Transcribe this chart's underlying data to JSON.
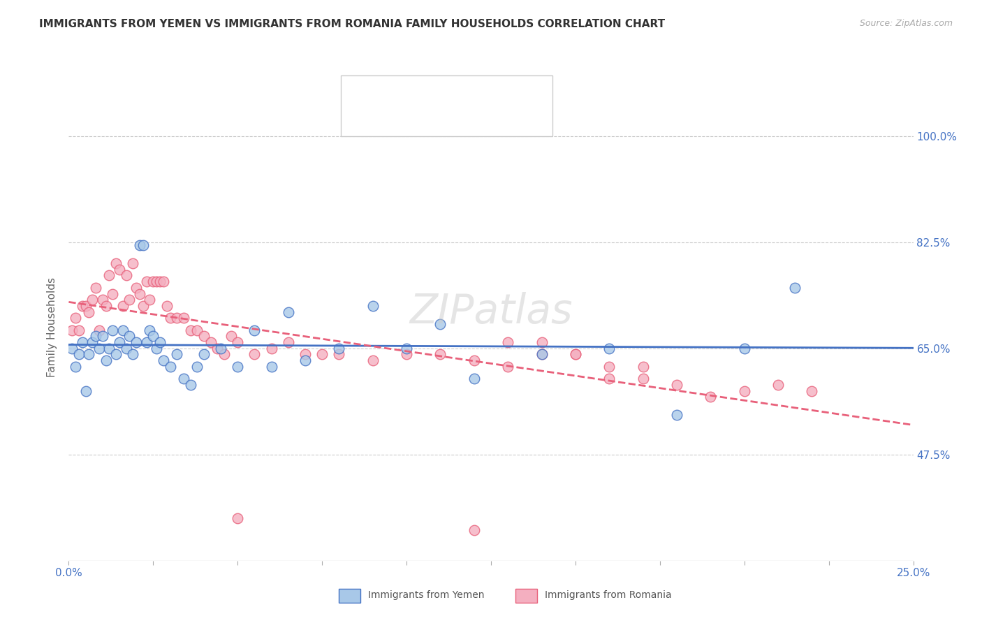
{
  "title": "IMMIGRANTS FROM YEMEN VS IMMIGRANTS FROM ROMANIA FAMILY HOUSEHOLDS CORRELATION CHART",
  "source": "Source: ZipAtlas.com",
  "ylabel": "Family Households",
  "yticks": [
    0.475,
    0.65,
    0.825,
    1.0
  ],
  "ytick_labels": [
    "47.5%",
    "65.0%",
    "82.5%",
    "100.0%"
  ],
  "xmin": 0.0,
  "xmax": 0.25,
  "ymin": 0.3,
  "ymax": 1.07,
  "label1": "Immigrants from Yemen",
  "label2": "Immigrants from Romania",
  "color1": "#a8c8e8",
  "color2": "#f4afc0",
  "line_color1": "#4472c4",
  "line_color2": "#e8607a",
  "title_color": "#333333",
  "source_color": "#aaaaaa",
  "axis_label_color": "#4472c4",
  "yemen_x": [
    0.001,
    0.002,
    0.003,
    0.004,
    0.005,
    0.006,
    0.007,
    0.008,
    0.009,
    0.01,
    0.011,
    0.012,
    0.013,
    0.014,
    0.015,
    0.016,
    0.017,
    0.018,
    0.019,
    0.02,
    0.021,
    0.022,
    0.023,
    0.024,
    0.025,
    0.026,
    0.027,
    0.028,
    0.03,
    0.032,
    0.034,
    0.036,
    0.038,
    0.04,
    0.045,
    0.05,
    0.055,
    0.06,
    0.065,
    0.07,
    0.08,
    0.09,
    0.1,
    0.11,
    0.12,
    0.14,
    0.16,
    0.18,
    0.2,
    0.215
  ],
  "yemen_y": [
    0.65,
    0.62,
    0.64,
    0.66,
    0.58,
    0.64,
    0.66,
    0.67,
    0.65,
    0.67,
    0.63,
    0.65,
    0.68,
    0.64,
    0.66,
    0.68,
    0.65,
    0.67,
    0.64,
    0.66,
    0.82,
    0.82,
    0.66,
    0.68,
    0.67,
    0.65,
    0.66,
    0.63,
    0.62,
    0.64,
    0.6,
    0.59,
    0.62,
    0.64,
    0.65,
    0.62,
    0.68,
    0.62,
    0.71,
    0.63,
    0.65,
    0.72,
    0.65,
    0.69,
    0.6,
    0.64,
    0.65,
    0.54,
    0.65,
    0.75
  ],
  "romania_x": [
    0.001,
    0.002,
    0.003,
    0.004,
    0.005,
    0.006,
    0.007,
    0.008,
    0.009,
    0.01,
    0.011,
    0.012,
    0.013,
    0.014,
    0.015,
    0.016,
    0.017,
    0.018,
    0.019,
    0.02,
    0.021,
    0.022,
    0.023,
    0.024,
    0.025,
    0.026,
    0.027,
    0.028,
    0.029,
    0.03,
    0.032,
    0.034,
    0.036,
    0.038,
    0.04,
    0.042,
    0.044,
    0.046,
    0.048,
    0.05,
    0.055,
    0.06,
    0.065,
    0.07,
    0.075,
    0.08,
    0.09,
    0.1,
    0.11,
    0.12,
    0.13,
    0.14,
    0.15,
    0.16,
    0.17,
    0.18,
    0.19,
    0.2,
    0.21,
    0.22,
    0.05,
    0.12,
    0.16,
    0.13,
    0.14,
    0.15,
    0.17
  ],
  "romania_y": [
    0.68,
    0.7,
    0.68,
    0.72,
    0.72,
    0.71,
    0.73,
    0.75,
    0.68,
    0.73,
    0.72,
    0.77,
    0.74,
    0.79,
    0.78,
    0.72,
    0.77,
    0.73,
    0.79,
    0.75,
    0.74,
    0.72,
    0.76,
    0.73,
    0.76,
    0.76,
    0.76,
    0.76,
    0.72,
    0.7,
    0.7,
    0.7,
    0.68,
    0.68,
    0.67,
    0.66,
    0.65,
    0.64,
    0.67,
    0.66,
    0.64,
    0.65,
    0.66,
    0.64,
    0.64,
    0.64,
    0.63,
    0.64,
    0.64,
    0.63,
    0.62,
    0.66,
    0.64,
    0.6,
    0.6,
    0.59,
    0.57,
    0.58,
    0.59,
    0.58,
    0.37,
    0.35,
    0.62,
    0.66,
    0.64,
    0.64,
    0.62
  ]
}
